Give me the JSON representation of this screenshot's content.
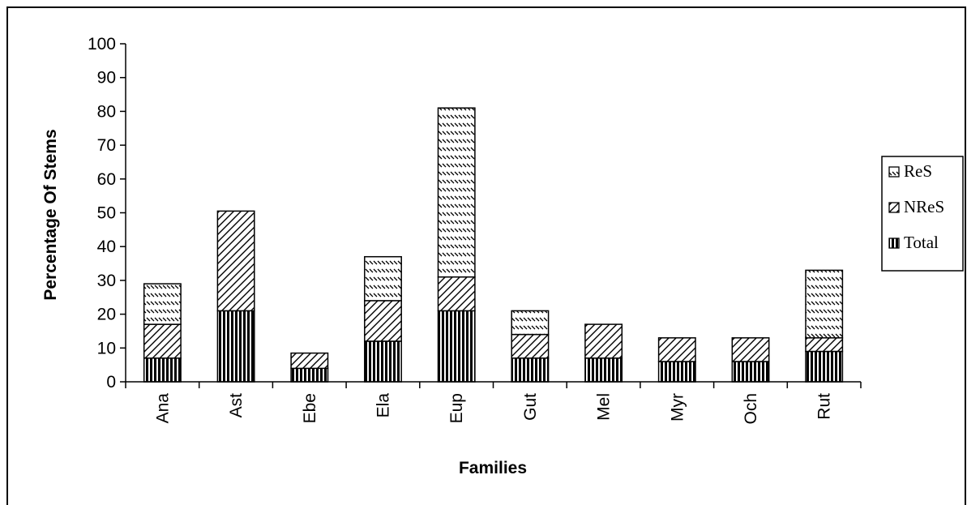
{
  "chart_data": {
    "type": "bar",
    "stacked": true,
    "categories": [
      "Ana",
      "Ast",
      "Ebe",
      "Ela",
      "Eup",
      "Gut",
      "Mel",
      "Myr",
      "Och",
      "Rut"
    ],
    "series": [
      {
        "name": "Total",
        "pattern": "vertical-lines",
        "values": [
          7,
          21,
          4,
          12,
          21,
          7,
          7,
          6,
          6,
          9
        ]
      },
      {
        "name": "NReS",
        "pattern": "diagonal-lines",
        "values": [
          10,
          29.5,
          4.5,
          12,
          10,
          7,
          10,
          7,
          7,
          4
        ]
      },
      {
        "name": "ReS",
        "pattern": "back-diagonal-dashes",
        "values": [
          12,
          0,
          0,
          13,
          50,
          7,
          0,
          0,
          0,
          20
        ]
      }
    ],
    "xlabel": "Families",
    "ylabel": "Percentage Of Stems",
    "ylim": [
      0,
      100
    ],
    "yticks": [
      0,
      10,
      20,
      30,
      40,
      50,
      60,
      70,
      80,
      90,
      100
    ],
    "legend_position": "right",
    "legend_order": [
      "ReS",
      "NReS",
      "Total"
    ],
    "grid": false,
    "colors": {
      "ink": "#000000",
      "background": "#ffffff"
    }
  }
}
